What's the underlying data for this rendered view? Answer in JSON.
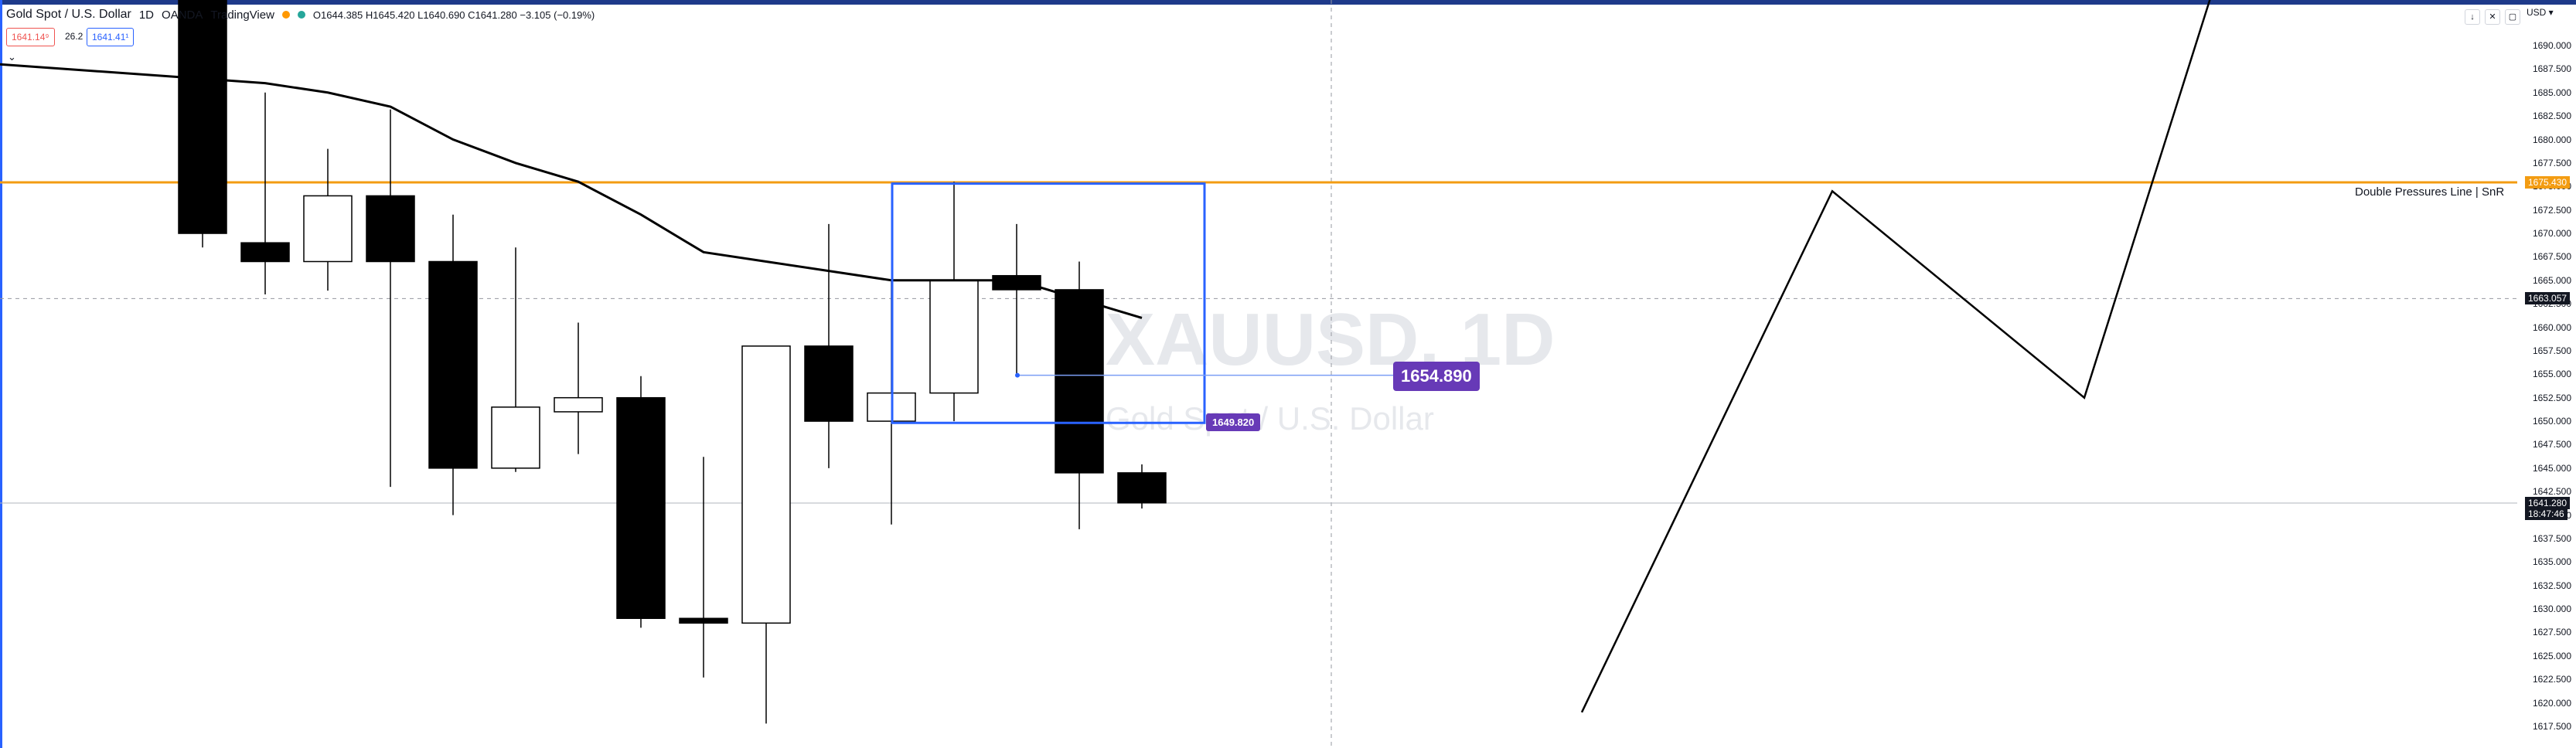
{
  "legend": {
    "symbol": "Gold Spot / U.S. Dollar",
    "interval": "1D",
    "broker": "OANDA",
    "source": "TradingView",
    "ohlc": "O1644.385  H1645.420  L1640.690  C1641.280  −3.105 (−0.19%)"
  },
  "trade": {
    "sell": "1641.14⁹",
    "spread": "26.2",
    "buy": "1641.41¹"
  },
  "currency": "USD",
  "watermark": {
    "symbol": "XAUUSD, 1D",
    "description": "Gold Spot / U.S. Dollar"
  },
  "snr": {
    "label": "Double Pressures Line | SnR",
    "price": "1675.430",
    "color": "#f39c12"
  },
  "labels": {
    "target": "1654.890",
    "box_low": "1649.820",
    "crosshair": "1663.057",
    "last": "1641.280",
    "countdown": "18:47:46"
  },
  "axis_ticks": [
    "1690.000",
    "1687.500",
    "1685.000",
    "1682.500",
    "1680.000",
    "1677.500",
    "1675.000",
    "1672.500",
    "1670.000",
    "1667.500",
    "1665.000",
    "1662.500",
    "1660.000",
    "1657.500",
    "1655.000",
    "1652.500",
    "1650.000",
    "1647.500",
    "1645.000",
    "1642.500",
    "1640.000",
    "1637.500",
    "1635.000",
    "1632.500",
    "1630.000",
    "1627.500",
    "1625.000",
    "1622.500",
    "1620.000",
    "1617.500"
  ],
  "chart_data": {
    "type": "candlestick",
    "symbol": "XAUUSD",
    "interval": "1D",
    "ylim": [
      1615.5,
      1691.5
    ],
    "candles": [
      {
        "o": 1700.0,
        "h": 1700.0,
        "l": 1668.5,
        "c": 1670.0
      },
      {
        "o": 1669.0,
        "h": 1685.0,
        "l": 1663.5,
        "c": 1667.0
      },
      {
        "o": 1667.0,
        "h": 1679.0,
        "l": 1663.9,
        "c": 1674.0
      },
      {
        "o": 1674.0,
        "h": 1683.2,
        "l": 1643.0,
        "c": 1667.0
      },
      {
        "o": 1667.0,
        "h": 1672.0,
        "l": 1640.0,
        "c": 1645.0
      },
      {
        "o": 1645.0,
        "h": 1668.5,
        "l": 1644.6,
        "c": 1651.5
      },
      {
        "o": 1651.0,
        "h": 1660.5,
        "l": 1646.5,
        "c": 1652.5
      },
      {
        "o": 1652.5,
        "h": 1654.8,
        "l": 1628.0,
        "c": 1629.0
      },
      {
        "o": 1629.0,
        "h": 1646.2,
        "l": 1622.7,
        "c": 1628.5
      },
      {
        "o": 1628.5,
        "h": 1658.0,
        "l": 1617.8,
        "c": 1658.0
      },
      {
        "o": 1658.0,
        "h": 1671.0,
        "l": 1645.0,
        "c": 1650.0
      },
      {
        "o": 1650.0,
        "h": 1665.0,
        "l": 1639.0,
        "c": 1653.0
      },
      {
        "o": 1653.0,
        "h": 1675.5,
        "l": 1650.0,
        "c": 1665.0
      },
      {
        "o": 1665.5,
        "h": 1671.0,
        "l": 1655.0,
        "c": 1664.0
      },
      {
        "o": 1664.0,
        "h": 1667.0,
        "l": 1638.5,
        "c": 1644.5
      },
      {
        "o": 1644.5,
        "h": 1645.4,
        "l": 1640.7,
        "c": 1641.3
      }
    ],
    "moving_average": [
      1688.0,
      1686.0,
      1685.0,
      1683.5,
      1680.0,
      1677.5,
      1675.5,
      1672.0,
      1668.0,
      1667.0,
      1666.0,
      1665.0,
      1665.0,
      1665.0,
      1663.0,
      1661.0
    ],
    "horizontal_line": 1675.43,
    "price_line": 1641.28,
    "crosshair_price": 1663.057,
    "projection_path": [
      [
        1615.0,
        1619.0
      ],
      [
        1617.5,
        1674.5
      ],
      [
        1619.5,
        1652.5
      ],
      [
        1621.0,
        1700.0
      ]
    ]
  }
}
